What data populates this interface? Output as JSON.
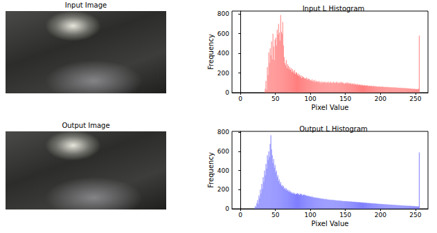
{
  "images": [
    {
      "title": "Input Image"
    },
    {
      "title": "Output Image"
    }
  ],
  "chart_data": [
    {
      "type": "histogram",
      "title": "Input L Histogram",
      "x_label": "Pixel Value",
      "y_label": "Frequency",
      "color": "#ff7f7f",
      "grid": false,
      "xlim": [
        -12,
        268
      ],
      "ylim": [
        0,
        830
      ],
      "xticks": [
        0,
        50,
        100,
        150,
        200,
        250
      ],
      "yticks": [
        0,
        200,
        400,
        600,
        800
      ],
      "bins": [
        30,
        31,
        32,
        33,
        34,
        35,
        36,
        37,
        38,
        39,
        40,
        41,
        42,
        43,
        44,
        45,
        46,
        47,
        48,
        49,
        50,
        51,
        52,
        53,
        54,
        55,
        56,
        57,
        58,
        59,
        60,
        61,
        62,
        63,
        64,
        65,
        66,
        67,
        68,
        69,
        70,
        71,
        72,
        73,
        74,
        75,
        76,
        77,
        78,
        79,
        80,
        81,
        82,
        83,
        84,
        85,
        86,
        87,
        88,
        89,
        90,
        91,
        92,
        93,
        94,
        95,
        96,
        97,
        98,
        99,
        100,
        101,
        102,
        103,
        104,
        105,
        106,
        107,
        108,
        109,
        110,
        111,
        112,
        113,
        114,
        115,
        116,
        117,
        118,
        119,
        120,
        121,
        122,
        123,
        124,
        125,
        126,
        127,
        128,
        129,
        130,
        131,
        132,
        133,
        134,
        135,
        136,
        137,
        138,
        139,
        140,
        141,
        142,
        143,
        144,
        145,
        146,
        147,
        148,
        149,
        150,
        151,
        152,
        153,
        154,
        155,
        156,
        157,
        158,
        159,
        160,
        161,
        162,
        163,
        164,
        165,
        166,
        167,
        168,
        169,
        170,
        171,
        172,
        173,
        174,
        175,
        176,
        177,
        178,
        179,
        180,
        181,
        182,
        183,
        184,
        185,
        186,
        187,
        188,
        189,
        190,
        191,
        192,
        193,
        194,
        195,
        196,
        197,
        198,
        199,
        200,
        201,
        202,
        203,
        204,
        205,
        206,
        207,
        208,
        209,
        210,
        211,
        212,
        213,
        214,
        215,
        216,
        217,
        218,
        219,
        220,
        221,
        222,
        223,
        224,
        225,
        226,
        227,
        228,
        229,
        230,
        231,
        232,
        233,
        234,
        235,
        236,
        237,
        238,
        239,
        240,
        241,
        242,
        243,
        244,
        245,
        246,
        247,
        248,
        249,
        250,
        251,
        252,
        253,
        254,
        255,
        256
      ],
      "values": [
        0,
        0,
        0,
        0,
        0,
        40,
        120,
        30,
        260,
        180,
        410,
        300,
        450,
        380,
        520,
        340,
        600,
        470,
        330,
        540,
        560,
        480,
        640,
        590,
        700,
        610,
        530,
        790,
        620,
        600,
        720,
        480,
        360,
        300,
        280,
        330,
        250,
        290,
        270,
        240,
        260,
        230,
        250,
        210,
        240,
        220,
        200,
        230,
        190,
        210,
        200,
        180,
        195,
        170,
        185,
        160,
        175,
        150,
        170,
        155,
        160,
        145,
        150,
        140,
        155,
        130,
        145,
        135,
        140,
        125,
        130,
        120,
        135,
        115,
        125,
        110,
        130,
        105,
        120,
        110,
        115,
        105,
        120,
        100,
        110,
        95,
        115,
        100,
        105,
        110,
        100,
        110,
        95,
        105,
        100,
        115,
        95,
        100,
        110,
        105,
        100,
        95,
        110,
        105,
        100,
        95,
        105,
        110,
        100,
        95,
        105,
        100,
        95,
        110,
        100,
        105,
        95,
        100,
        90,
        95,
        100,
        95,
        105,
        90,
        100,
        95,
        90,
        100,
        85,
        95,
        90,
        85,
        95,
        80,
        90,
        85,
        80,
        90,
        75,
        85,
        80,
        75,
        85,
        70,
        80,
        75,
        70,
        80,
        70,
        75,
        70,
        75,
        65,
        70,
        72,
        65,
        70,
        68,
        62,
        70,
        65,
        68,
        60,
        66,
        62,
        64,
        58,
        65,
        60,
        62,
        60,
        62,
        58,
        63,
        57,
        60,
        55,
        60,
        56,
        58,
        55,
        58,
        52,
        57,
        53,
        56,
        50,
        55,
        52,
        54,
        52,
        50,
        54,
        48,
        52,
        49,
        50,
        47,
        51,
        48,
        48,
        46,
        50,
        44,
        47,
        45,
        46,
        43,
        45,
        42,
        44,
        42,
        40,
        43,
        38,
        41,
        39,
        37,
        40,
        36,
        38,
        35,
        37,
        34,
        40,
        580
      ]
    },
    {
      "type": "histogram",
      "title": "Output L Histogram",
      "x_label": "Pixel Value",
      "y_label": "Frequency",
      "color": "#7f7fff",
      "grid": false,
      "xlim": [
        -12,
        268
      ],
      "ylim": [
        0,
        810
      ],
      "xticks": [
        0,
        50,
        100,
        150,
        200,
        250
      ],
      "yticks": [
        0,
        200,
        400,
        600,
        800
      ],
      "bins": [
        20,
        21,
        22,
        23,
        24,
        25,
        26,
        27,
        28,
        29,
        30,
        31,
        32,
        33,
        34,
        35,
        36,
        37,
        38,
        39,
        40,
        41,
        42,
        43,
        44,
        45,
        46,
        47,
        48,
        49,
        50,
        51,
        52,
        53,
        54,
        55,
        56,
        57,
        58,
        59,
        60,
        61,
        62,
        63,
        64,
        65,
        66,
        67,
        68,
        69,
        70,
        71,
        72,
        73,
        74,
        75,
        76,
        77,
        78,
        79,
        80,
        81,
        82,
        83,
        84,
        85,
        86,
        87,
        88,
        89,
        90,
        91,
        92,
        93,
        94,
        95,
        96,
        97,
        98,
        99,
        100,
        101,
        102,
        103,
        104,
        105,
        106,
        107,
        108,
        109,
        110,
        111,
        112,
        113,
        114,
        115,
        116,
        117,
        118,
        119,
        120,
        121,
        122,
        123,
        124,
        125,
        126,
        127,
        128,
        129,
        130,
        131,
        132,
        133,
        134,
        135,
        136,
        137,
        138,
        139,
        140,
        141,
        142,
        143,
        144,
        145,
        146,
        147,
        148,
        149,
        150,
        151,
        152,
        153,
        154,
        155,
        156,
        157,
        158,
        159,
        160,
        161,
        162,
        163,
        164,
        165,
        166,
        167,
        168,
        169,
        170,
        171,
        172,
        173,
        174,
        175,
        176,
        177,
        178,
        179,
        180,
        181,
        182,
        183,
        184,
        185,
        186,
        187,
        188,
        189,
        190,
        191,
        192,
        193,
        194,
        195,
        196,
        197,
        198,
        199,
        200,
        201,
        202,
        203,
        204,
        205,
        206,
        207,
        208,
        209,
        210,
        211,
        212,
        213,
        214,
        215,
        216,
        217,
        218,
        219,
        220,
        221,
        222,
        223,
        224,
        225,
        226,
        227,
        228,
        229,
        230,
        231,
        232,
        233,
        234,
        235,
        236,
        237,
        238,
        239,
        240,
        241,
        242,
        243,
        244,
        245,
        246,
        247,
        248,
        249,
        250,
        251,
        252,
        253,
        254,
        255,
        256
      ],
      "values": [
        10,
        30,
        20,
        60,
        90,
        50,
        140,
        110,
        200,
        160,
        260,
        210,
        330,
        280,
        400,
        350,
        470,
        420,
        560,
        510,
        600,
        540,
        680,
        770,
        620,
        560,
        480,
        520,
        430,
        460,
        380,
        400,
        330,
        350,
        290,
        310,
        260,
        280,
        240,
        250,
        230,
        240,
        210,
        220,
        200,
        215,
        190,
        200,
        180,
        195,
        175,
        185,
        165,
        175,
        160,
        170,
        155,
        165,
        150,
        160,
        155,
        165,
        150,
        160,
        145,
        160,
        150,
        155,
        140,
        150,
        145,
        150,
        140,
        145,
        135,
        140,
        130,
        138,
        128,
        132,
        125,
        130,
        120,
        128,
        118,
        122,
        115,
        120,
        112,
        118,
        110,
        115,
        108,
        112,
        105,
        110,
        102,
        108,
        100,
        105,
        102,
        98,
        105,
        96,
        100,
        94,
        98,
        92,
        96,
        90,
        95,
        90,
        94,
        88,
        92,
        86,
        90,
        85,
        88,
        84,
        88,
        84,
        86,
        82,
        85,
        80,
        84,
        78,
        82,
        80,
        82,
        78,
        80,
        76,
        79,
        75,
        78,
        74,
        77,
        73,
        76,
        72,
        75,
        70,
        74,
        69,
        72,
        68,
        71,
        67,
        70,
        66,
        69,
        64,
        68,
        63,
        66,
        62,
        65,
        61,
        64,
        60,
        63,
        58,
        62,
        57,
        60,
        56,
        59,
        55,
        58,
        54,
        57,
        52,
        56,
        51,
        54,
        50,
        53,
        49,
        52,
        48,
        51,
        47,
        50,
        46,
        49,
        45,
        48,
        44,
        47,
        43,
        46,
        42,
        45,
        41,
        44,
        40,
        43,
        39,
        42,
        38,
        41,
        37,
        40,
        36,
        39,
        35,
        38,
        34,
        37,
        33,
        36,
        32,
        35,
        31,
        34,
        30,
        33,
        29,
        32,
        30,
        33,
        29,
        31,
        28,
        30,
        27,
        29,
        26,
        28,
        25,
        27,
        24,
        26,
        590
      ]
    }
  ]
}
